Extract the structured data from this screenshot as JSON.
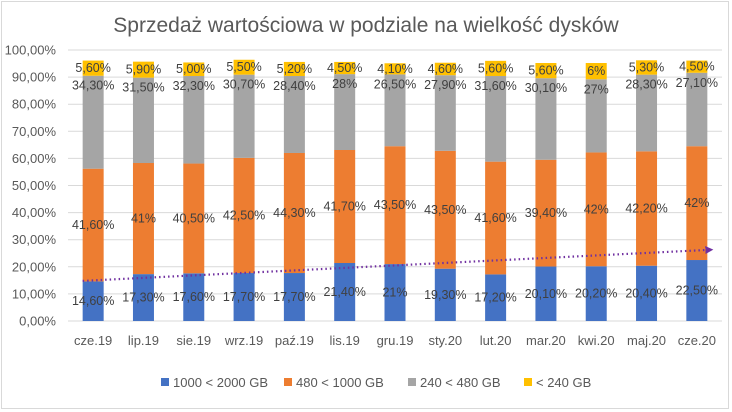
{
  "chart_data": {
    "type": "bar",
    "stacked": true,
    "title": "Sprzedaż wartościowa w podziale na wielkość dysków",
    "categories": [
      "cze.19",
      "lip.19",
      "sie.19",
      "wrz.19",
      "paź.19",
      "lis.19",
      "gru.19",
      "sty.20",
      "lut.20",
      "mar.20",
      "kwi.20",
      "maj.20",
      "cze.20"
    ],
    "ylim": [
      0,
      100
    ],
    "ytick_step": 10,
    "ytick_suffix": "%",
    "grid": true,
    "legend": "bottom",
    "series": [
      {
        "name": "1000 < 2000 GB",
        "color": "#4472c4",
        "values": [
          14.6,
          17.3,
          17.6,
          17.7,
          17.7,
          21.4,
          21,
          19.3,
          17.2,
          20.1,
          20.2,
          20.4,
          22.5
        ],
        "labels": [
          "14,60%",
          "17,30%",
          "17,60%",
          "17,70%",
          "17,70%",
          "21,40%",
          "21%",
          "19,30%",
          "17,20%",
          "20,10%",
          "20,20%",
          "20,40%",
          "22,50%"
        ]
      },
      {
        "name": "480 < 1000 GB",
        "color": "#ed7d31",
        "values": [
          41.6,
          41,
          40.5,
          42.5,
          44.3,
          41.7,
          43.5,
          43.5,
          41.6,
          39.4,
          42,
          42.2,
          42
        ],
        "labels": [
          "41,60%",
          "41%",
          "40,50%",
          "42,50%",
          "44,30%",
          "41,70%",
          "43,50%",
          "43,50%",
          "41,60%",
          "39,40%",
          "42%",
          "42,20%",
          "42%"
        ]
      },
      {
        "name": "240 < 480 GB",
        "color": "#a5a5a5",
        "values": [
          34.3,
          31.5,
          32.3,
          30.7,
          28.4,
          28,
          26.5,
          27.9,
          31.6,
          30.1,
          27,
          28.3,
          27.1
        ],
        "labels": [
          "34,30%",
          "31,50%",
          "32,30%",
          "30,70%",
          "28,40%",
          "28%",
          "26,50%",
          "27,90%",
          "31,60%",
          "30,10%",
          "27%",
          "28,30%",
          "27,10%"
        ]
      },
      {
        "name": "< 240 GB",
        "color": "#ffc000",
        "values": [
          5.6,
          5.9,
          5,
          5.5,
          5.2,
          4.5,
          4.1,
          4.6,
          5.6,
          5.6,
          6,
          5.3,
          4.5
        ],
        "labels": [
          "5,60%",
          "5,90%",
          "5,00%",
          "5,50%",
          "5,20%",
          "4,50%",
          "4,10%",
          "4,60%",
          "5,60%",
          "5,60%",
          "6%",
          "5,30%",
          "4,50%"
        ]
      }
    ],
    "trendline": {
      "series": "1000 < 2000 GB",
      "style": "dotted",
      "color": "#7030a0",
      "start": 14.8,
      "end": 26.3
    }
  }
}
